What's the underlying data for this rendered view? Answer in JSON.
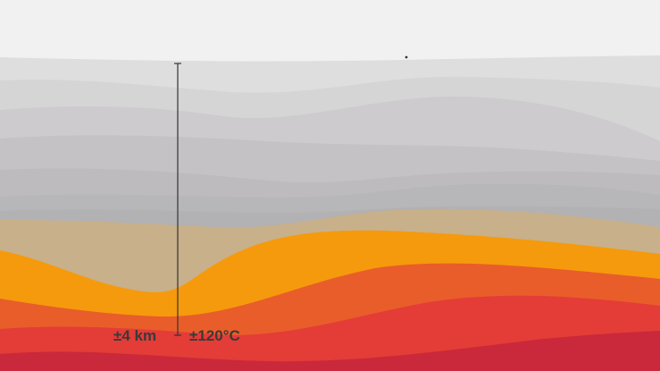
{
  "depth_label": "±4 km",
  "temperature_label": "±120°C",
  "colors": {
    "sky": "#f1f1f1",
    "grey_layers": [
      "#dedede",
      "#d6d5d6",
      "#cdcbcd",
      "#c4c2c4",
      "#bdbbbd",
      "#b7b6b8",
      "#b2b1b3"
    ],
    "sandstone": "#c8b08a",
    "orange": "#f59a0d",
    "dark_orange": "#e95d2a",
    "red": "#e43c37",
    "deep_red": "#c9293a",
    "measure_line": "#333333"
  }
}
